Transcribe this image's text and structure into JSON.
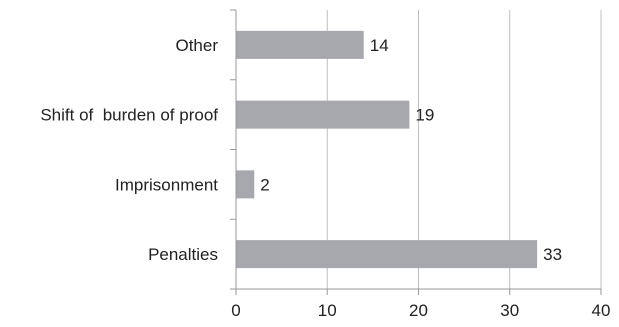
{
  "chart_data": {
    "type": "bar",
    "orientation": "horizontal",
    "categories": [
      "Other",
      "Shift of  burden of proof",
      "Imprisonment",
      "Penalties"
    ],
    "values": [
      14,
      19,
      2,
      33
    ],
    "data_labels": [
      "14",
      "19",
      "2",
      "33"
    ],
    "title": "",
    "xlabel": "",
    "ylabel": "",
    "xlim": [
      0,
      40
    ],
    "x_ticks": [
      "0",
      "10",
      "20",
      "30",
      "40"
    ],
    "grid": "vertical",
    "legend": "none"
  },
  "colors": {
    "bar": "#a6a8ad",
    "gridline": "#bfbfbf",
    "axis": "#9a9a9a",
    "text": "#222222"
  }
}
